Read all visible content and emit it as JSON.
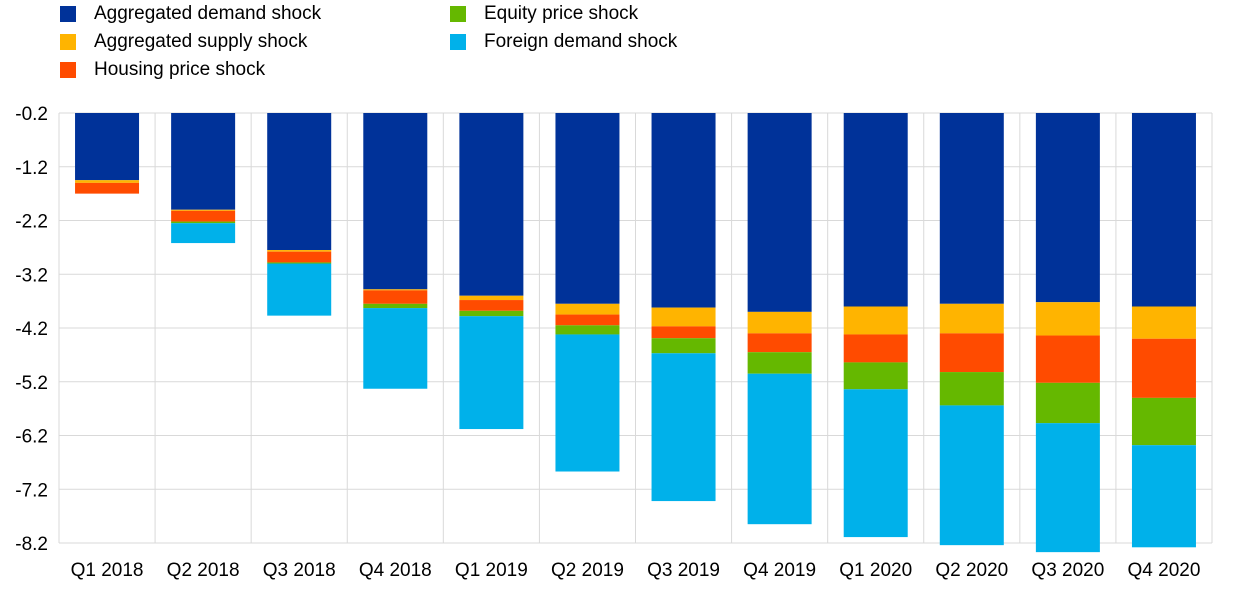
{
  "chart_data": {
    "type": "bar",
    "stacked": true,
    "title": "",
    "xlabel": "",
    "ylabel": "",
    "ylim": [
      -8.2,
      -0.2
    ],
    "yticks": [
      -0.2,
      -1.2,
      -2.2,
      -3.2,
      -4.2,
      -5.2,
      -6.2,
      -7.2,
      -8.2
    ],
    "ytick_labels": [
      "-0.2",
      "-1.2",
      "-2.2",
      "-3.2",
      "-4.2",
      "-5.2",
      "-6.2",
      "-7.2",
      "-8.2"
    ],
    "legend_placement": "top-left",
    "categories": [
      "Q1 2018",
      "Q2 2018",
      "Q3 2018",
      "Q4 2018",
      "Q1 2019",
      "Q2 2019",
      "Q3 2019",
      "Q4 2019",
      "Q1 2020",
      "Q2 2020",
      "Q3 2020",
      "Q4 2020"
    ],
    "series": [
      {
        "name": "Aggregated demand shock",
        "color": "#003299",
        "values": [
          -1.25,
          -1.8,
          -2.55,
          -3.28,
          -3.4,
          -3.55,
          -3.62,
          -3.7,
          -3.6,
          -3.55,
          -3.52,
          -3.6
        ]
      },
      {
        "name": "Aggregated supply shock",
        "color": "#FFB400",
        "values": [
          -0.05,
          -0.02,
          -0.03,
          -0.02,
          -0.08,
          -0.2,
          -0.35,
          -0.4,
          -0.52,
          -0.55,
          -0.62,
          -0.6
        ]
      },
      {
        "name": "Housing price shock",
        "color": "#FF4B00",
        "values": [
          -0.2,
          -0.2,
          -0.2,
          -0.25,
          -0.2,
          -0.2,
          -0.22,
          -0.35,
          -0.52,
          -0.72,
          -0.88,
          -1.1
        ]
      },
      {
        "name": "Equity price shock",
        "color": "#65B800",
        "values": [
          0,
          -0.03,
          -0.02,
          -0.08,
          -0.1,
          -0.17,
          -0.28,
          -0.4,
          -0.5,
          -0.62,
          -0.75,
          -0.88
        ]
      },
      {
        "name": "Foreign demand shock",
        "color": "#00B1EA",
        "values": [
          0,
          -0.37,
          -0.97,
          -1.5,
          -2.1,
          -2.55,
          -2.75,
          -2.8,
          -2.75,
          -2.6,
          -2.4,
          -1.9
        ]
      }
    ]
  }
}
